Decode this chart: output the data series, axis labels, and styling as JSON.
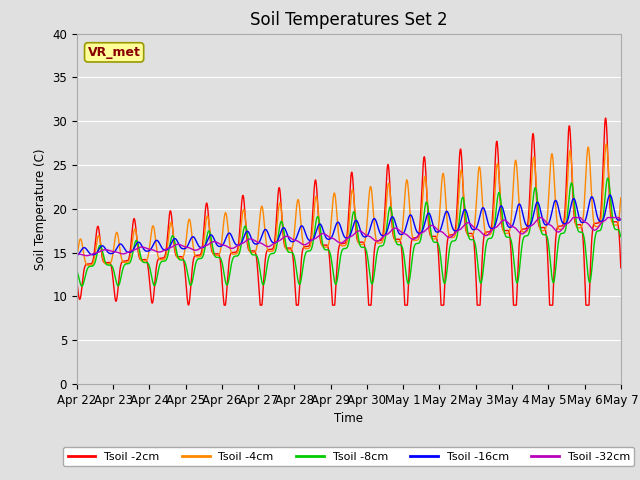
{
  "title": "Soil Temperatures Set 2",
  "xlabel": "Time",
  "ylabel": "Soil Temperature (C)",
  "xlim": [
    0,
    15
  ],
  "ylim": [
    0,
    40
  ],
  "yticks": [
    0,
    5,
    10,
    15,
    20,
    25,
    30,
    35,
    40
  ],
  "xtick_labels": [
    "Apr 22",
    "Apr 23",
    "Apr 24",
    "Apr 25",
    "Apr 26",
    "Apr 27",
    "Apr 28",
    "Apr 29",
    "Apr 30",
    "May 1",
    "May 2",
    "May 3",
    "May 4",
    "May 5",
    "May 6",
    "May 7"
  ],
  "background_color": "#e0e0e0",
  "plot_bg_color": "#e0e0e0",
  "grid_color": "#ffffff",
  "series": [
    {
      "label": "Tsoil -2cm",
      "color": "#ff0000"
    },
    {
      "label": "Tsoil -4cm",
      "color": "#ff8800"
    },
    {
      "label": "Tsoil -8cm",
      "color": "#00cc00"
    },
    {
      "label": "Tsoil -16cm",
      "color": "#0000ff"
    },
    {
      "label": "Tsoil -32cm",
      "color": "#bb00bb"
    }
  ],
  "legend_label": "VR_met",
  "legend_box_color": "#ffff99",
  "legend_text_color": "#880000",
  "title_fontsize": 12,
  "axis_fontsize": 8.5
}
